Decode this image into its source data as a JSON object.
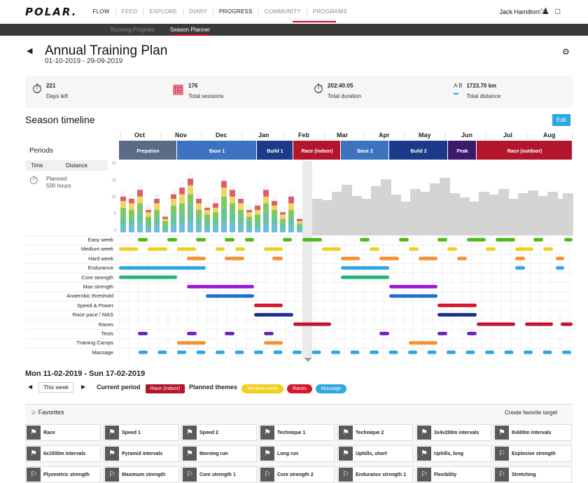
{
  "nav": {
    "logo": "POLAR.",
    "items": [
      "FLOW",
      "FEED",
      "EXPLORE",
      "DIARY",
      "PROGRESS",
      "COMMUNITY",
      "PROGRAMS"
    ],
    "user": "Jack Hamilton"
  },
  "subnav": {
    "running_program": "Running Program",
    "season_planner": "Season Planner"
  },
  "header": {
    "title": "Annual Training Plan",
    "dates": "01-10-2019 - 29-09-2019"
  },
  "stats": [
    {
      "value": "221",
      "label": "Days left",
      "icon": "stopwatch-icon"
    },
    {
      "value": "176",
      "label": "Total sessions",
      "icon": "calendar-run-icon"
    },
    {
      "value": "202:40:05",
      "label": "Total duration",
      "icon": "timer-icon"
    },
    {
      "value": "1723.70 km",
      "label": "Total distance",
      "icon": "distance-icon",
      "prefix": "A  B"
    }
  ],
  "timeline": {
    "title": "Season timeline",
    "edit": "Edit",
    "months": [
      "Oct",
      "Nov",
      "Dec",
      "Jan",
      "Feb",
      "Mar",
      "Apr",
      "May",
      "Jun",
      "Jul",
      "Aug"
    ],
    "periods_label": "Periods",
    "tabs": [
      "Time",
      "Distance"
    ],
    "planned": "Planned",
    "planned_hours": "500 hours",
    "y_ticks": [
      "20",
      "15",
      "10",
      "5",
      "h"
    ],
    "periods": [
      {
        "name": "Prepation",
        "color": "#5b6b86"
      },
      {
        "name": "Base 1",
        "color": "#3c73c0"
      },
      {
        "name": "Build 1",
        "color": "#1c3a8a"
      },
      {
        "name": "Race (indoor)",
        "color": "#b3162c"
      },
      {
        "name": "Base 2",
        "color": "#3c73c0"
      },
      {
        "name": "Build 2",
        "color": "#1c3a8a"
      },
      {
        "name": "Peak",
        "color": "#3b1a6e"
      },
      {
        "name": "Race (outdoor)",
        "color": "#b3162c"
      }
    ],
    "themes": [
      "Easy week",
      "Medium week",
      "Hard week",
      "Endurance",
      "Core strength",
      "Max strength",
      "Anaerobic threshold",
      "Speed & Power",
      "Race pace / MAS",
      "Races",
      "Tests",
      "Training Camps",
      "Massage"
    ],
    "theme_colors": [
      "#4cbb17",
      "#f2cf1d",
      "#f39230",
      "#2ea8df",
      "#25b373",
      "#9b1fd6",
      "#1f6ed1",
      "#d8162e",
      "#1a2f96",
      "#c0152e",
      "#6a2bb3",
      "#f39230",
      "#2ea8df"
    ]
  },
  "week": {
    "title": "Mon 11-02-2019 - Sun 17-02-2019",
    "this_week": "This week",
    "current_period_label": "Current period",
    "current_period": "Race (indoor)",
    "planned_themes_label": "Planned themes",
    "themes": [
      {
        "name": "Medium week",
        "color": "#f2cf1d"
      },
      {
        "name": "Races",
        "color": "#d8162e"
      },
      {
        "name": "Massage",
        "color": "#2ea8df"
      }
    ]
  },
  "favorites": {
    "title": "Favorites",
    "create": "Create favorite target",
    "items": [
      "Race",
      "Speed 1",
      "Speed 2",
      "Technique 1",
      "Technique 2",
      "3x4x200m intervals",
      "8x600m intervals",
      "6x1000m intervals",
      "Pyramid intervals",
      "Morning run",
      "Long run",
      "Uphills, short",
      "Uphills, long",
      "Explosive strength",
      "Plyometric strength",
      "Maximum strength",
      "Core strength 1",
      "Core strength 2",
      "Endurance strength 1",
      "Flexibility",
      "Stretching"
    ]
  }
}
